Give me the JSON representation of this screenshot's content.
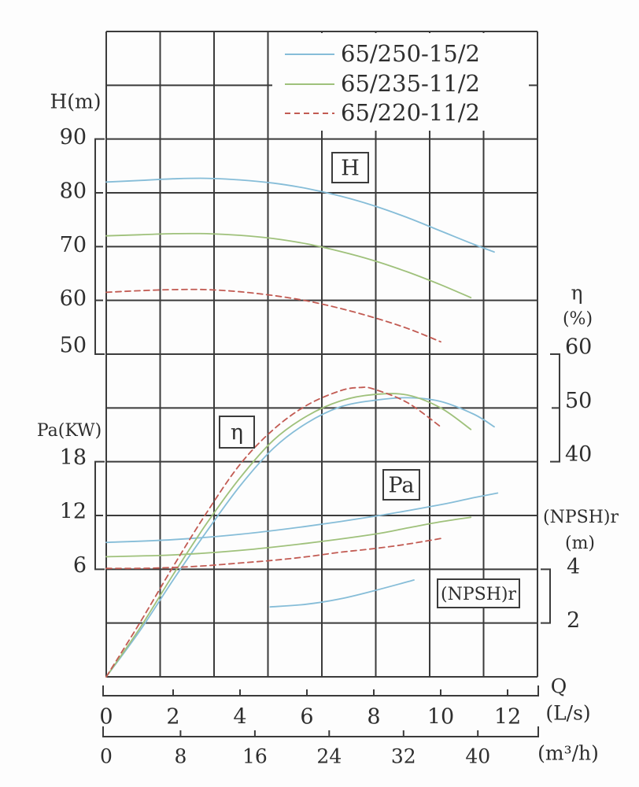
{
  "axis_titles": {
    "head": "H(m)",
    "power": "Pa(KW)",
    "eta": "η",
    "eta_unit": "(%)",
    "npsh": "(NPSH)r",
    "npsh_unit": "(m)",
    "flow": "Q",
    "flow_unit_ls": "(L/s)",
    "flow_unit_m3h": "(m³/h)"
  },
  "chart_data": {
    "type": "line",
    "x_axis": {
      "label": "Q",
      "units": [
        "(L/s)",
        "(m³/h)"
      ],
      "ticks_L_per_s": [
        0,
        2,
        4,
        6,
        8,
        10,
        12
      ],
      "ticks_m3_per_h": [
        0,
        8,
        16,
        24,
        32,
        40
      ],
      "range_L_per_s": [
        0,
        12.9
      ]
    },
    "y_axes": [
      {
        "id": "H",
        "title": "H(m)",
        "side": "left",
        "ticks": [
          90,
          80,
          70,
          60,
          50
        ]
      },
      {
        "id": "Pa",
        "title": "Pa(KW)",
        "side": "left",
        "ticks": [
          18,
          12,
          6
        ]
      },
      {
        "id": "eta",
        "title": "η",
        "unit": "(%)",
        "side": "right",
        "ticks": [
          60,
          50,
          40
        ]
      },
      {
        "id": "npsh",
        "title": "(NPSH)r",
        "unit": "(m)",
        "side": "right",
        "ticks": [
          4,
          2
        ]
      }
    ],
    "grid": {
      "columns": 8,
      "rows": 12
    },
    "annotations": [
      {
        "text": "H"
      },
      {
        "text": "η"
      },
      {
        "text": "Pa"
      },
      {
        "text": "(NPSH)r"
      }
    ],
    "series": [
      {
        "model": "65/250-15/2",
        "color": "#86bdd8",
        "line_style": "solid",
        "H": {
          "Q": [
            0,
            1,
            2,
            3,
            4,
            5,
            6,
            7,
            8,
            9,
            10,
            11,
            11.6
          ],
          "values": [
            82,
            82.3,
            82.6,
            82.7,
            82.4,
            81.8,
            80.8,
            79.4,
            77.6,
            75.4,
            72.9,
            70.4,
            69
          ]
        },
        "eta": {
          "Q": [
            0,
            1,
            2,
            3,
            4,
            5,
            6,
            7,
            8,
            9,
            10,
            11,
            11.6
          ],
          "values": [
            0,
            8.5,
            18,
            27,
            35.5,
            42.5,
            47.2,
            50.2,
            51.4,
            51.9,
            51.2,
            48.8,
            46.5
          ]
        },
        "Pa": {
          "Q": [
            0,
            2,
            4,
            6,
            8,
            10,
            11,
            11.7
          ],
          "values": [
            9,
            9.3,
            9.9,
            10.8,
            11.9,
            13.2,
            14,
            14.5
          ]
        },
        "npsh": {
          "Q": [
            4.9,
            6,
            7,
            8,
            9.2
          ],
          "values": [
            2.6,
            2.7,
            2.9,
            3.2,
            3.6
          ]
        }
      },
      {
        "model": "65/235-11/2",
        "color": "#9fc17b",
        "line_style": "solid",
        "H": {
          "Q": [
            0,
            1,
            2,
            3,
            4,
            5,
            6,
            7,
            8,
            9,
            10,
            10.9
          ],
          "values": [
            72,
            72.2,
            72.4,
            72.4,
            72.1,
            71.5,
            70.5,
            69.1,
            67.4,
            65.3,
            62.9,
            60.5
          ]
        },
        "eta": {
          "Q": [
            0,
            1,
            2,
            3,
            4,
            5,
            6,
            7,
            8,
            9,
            10,
            10.9
          ],
          "values": [
            0,
            9,
            19,
            28.5,
            37,
            44,
            48.5,
            51.3,
            52.5,
            52.4,
            50,
            46
          ]
        },
        "Pa": {
          "Q": [
            0,
            2,
            4,
            6,
            8,
            9,
            10,
            10.9
          ],
          "values": [
            7.4,
            7.6,
            8.1,
            8.9,
            9.9,
            10.6,
            11.3,
            11.8
          ]
        }
      },
      {
        "model": "65/220-11/2",
        "color": "#c25b53",
        "line_style": "dashed",
        "H": {
          "Q": [
            0,
            1,
            2,
            3,
            4,
            5,
            6,
            7,
            8,
            9,
            10
          ],
          "values": [
            61.5,
            61.8,
            62,
            62,
            61.6,
            60.9,
            59.9,
            58.5,
            56.8,
            54.8,
            52.3
          ]
        },
        "eta": {
          "Q": [
            0,
            1,
            2,
            3,
            4,
            5,
            6,
            7,
            7.6,
            8,
            9,
            10
          ],
          "values": [
            0,
            10,
            20.5,
            30.5,
            39.5,
            46,
            50.5,
            53.2,
            53.8,
            53.5,
            51,
            46.5
          ]
        },
        "Pa": {
          "Q": [
            0,
            1,
            2,
            3,
            4,
            5,
            6,
            7,
            8,
            9,
            10.1
          ],
          "values": [
            6.1,
            6.1,
            6.2,
            6.4,
            6.7,
            7,
            7.4,
            7.9,
            8.3,
            8.8,
            9.5
          ]
        }
      }
    ]
  }
}
